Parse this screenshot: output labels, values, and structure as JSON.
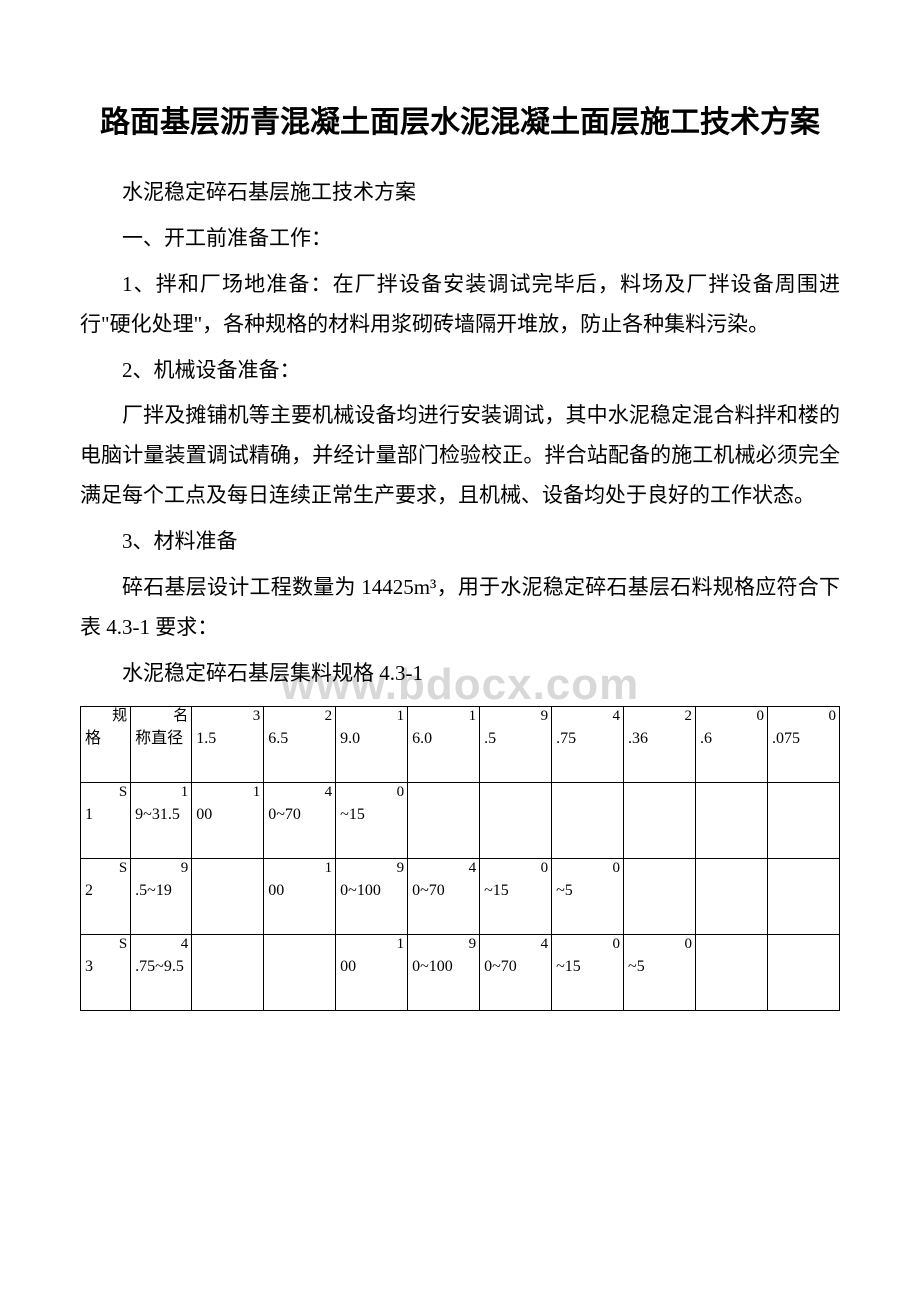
{
  "title": "路面基层沥青混凝土面层水泥混凝土面层施工技术方案",
  "p1": "水泥稳定碎石基层施工技术方案",
  "p2": "一、开工前准备工作：",
  "p3": "1、拌和厂场地准备：在厂拌设备安装调试完毕后，料场及厂拌设备周围进行\"硬化处理\"，各种规格的材料用浆砌砖墙隔开堆放，防止各种集料污染。",
  "p4": "2、机械设备准备：",
  "p5": "厂拌及摊铺机等主要机械设备均进行安装调试，其中水泥稳定混合料拌和楼的电脑计量装置调试精确，并经计量部门检验校正。拌合站配备的施工机械必须完全满足每个工点及每日连续正常生产要求，且机械、设备均处于良好的工作状态。",
  "p6": "3、材料准备",
  "p7": "碎石基层设计工程数量为 14425m³，用于水泥稳定碎石基层石料规格应符合下表 4.3-1 要求：",
  "p8": "水泥稳定碎石基层集料规格 4.3-1",
  "watermark": "www.bdocx.com",
  "table": {
    "header": {
      "spec_sup": "规",
      "spec_main": "格",
      "diam_sup": "名",
      "diam_main": "称直径",
      "sieves": [
        {
          "sup": "3",
          "main": "1.5"
        },
        {
          "sup": "2",
          "main": "6.5"
        },
        {
          "sup": "1",
          "main": "9.0"
        },
        {
          "sup": "1",
          "main": "6.0"
        },
        {
          "sup": "9",
          "main": ".5"
        },
        {
          "sup": "4",
          "main": ".75"
        },
        {
          "sup": "2",
          "main": ".36"
        },
        {
          "sup": "0",
          "main": ".6"
        },
        {
          "sup": "0",
          "main": ".075"
        }
      ]
    },
    "rows": [
      {
        "spec_sup": "S",
        "spec_main": "1",
        "diam_sup": "1",
        "diam_main": "9~31.5",
        "cells": [
          {
            "sup": "1",
            "main": "00"
          },
          {
            "sup": "4",
            "main": "0~70"
          },
          {
            "sup": "0",
            "main": "~15"
          },
          {
            "sup": "",
            "main": ""
          },
          {
            "sup": "",
            "main": ""
          },
          {
            "sup": "",
            "main": ""
          },
          {
            "sup": "",
            "main": ""
          },
          {
            "sup": "",
            "main": ""
          },
          {
            "sup": "",
            "main": ""
          }
        ]
      },
      {
        "spec_sup": "S",
        "spec_main": "2",
        "diam_sup": "9",
        "diam_main": ".5~19",
        "cells": [
          {
            "sup": "",
            "main": ""
          },
          {
            "sup": "1",
            "main": "00"
          },
          {
            "sup": "9",
            "main": "0~100"
          },
          {
            "sup": "4",
            "main": "0~70"
          },
          {
            "sup": "0",
            "main": "~15"
          },
          {
            "sup": "0",
            "main": "~5"
          },
          {
            "sup": "",
            "main": ""
          },
          {
            "sup": "",
            "main": ""
          },
          {
            "sup": "",
            "main": ""
          }
        ]
      },
      {
        "spec_sup": "S",
        "spec_main": "3",
        "diam_sup": "4",
        "diam_main": ".75~9.5",
        "cells": [
          {
            "sup": "",
            "main": ""
          },
          {
            "sup": "",
            "main": ""
          },
          {
            "sup": "1",
            "main": "00"
          },
          {
            "sup": "9",
            "main": "0~100"
          },
          {
            "sup": "4",
            "main": "0~70"
          },
          {
            "sup": "0",
            "main": "~15"
          },
          {
            "sup": "0",
            "main": "~5"
          },
          {
            "sup": "",
            "main": ""
          },
          {
            "sup": "",
            "main": ""
          }
        ]
      }
    ]
  }
}
